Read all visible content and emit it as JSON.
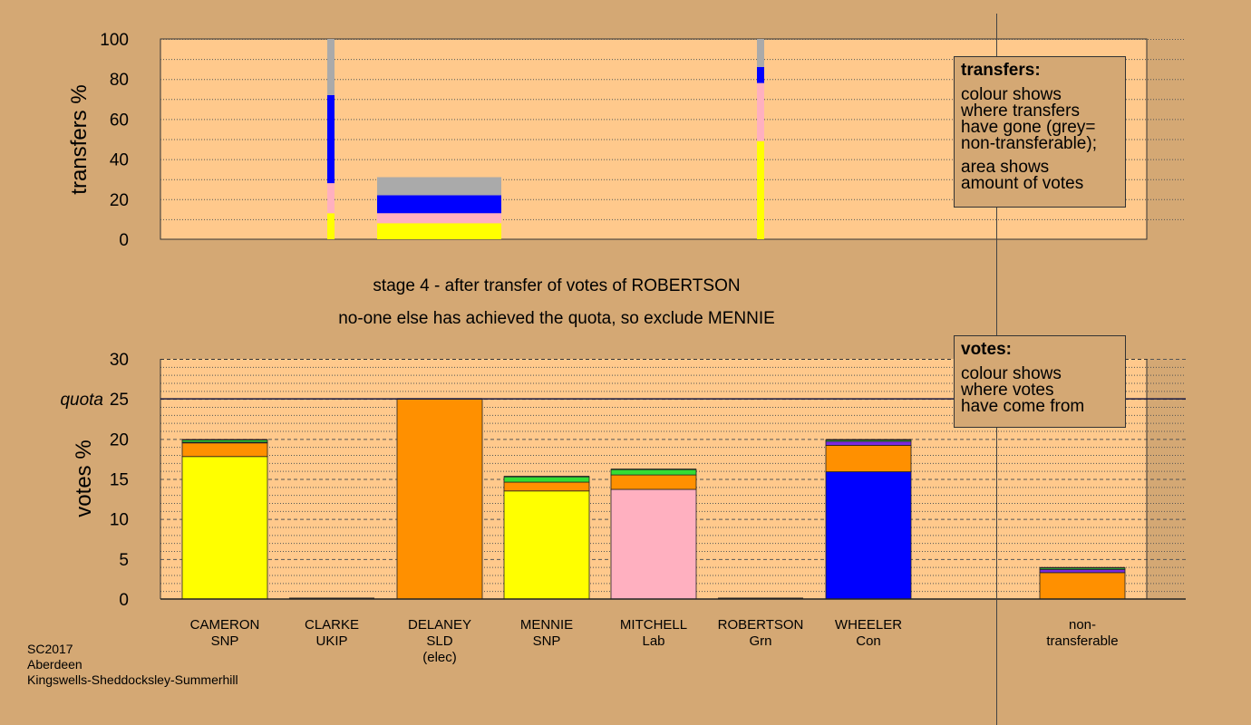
{
  "colors": {
    "background": "#d4a874",
    "plot_bg": "#ffc98c",
    "SNP": "#ffff00",
    "Con": "#0000ff",
    "Lab": "#ffb0c0",
    "SLD": "#ff9000",
    "Grn": "#33dd33",
    "UKIP": "#7a2adf",
    "nontransferable": "#aaaaaa"
  },
  "stage_title": "stage 4 - after transfer of votes of ROBERTSON",
  "stage_subtitle": "no-one else has achieved the quota, so exclude MENNIE",
  "transfers_legend": {
    "title": "transfers:",
    "lines_a": [
      "colour shows",
      "where transfers",
      "have gone (grey=",
      "non-transferable);"
    ],
    "lines_b": [
      "area shows",
      "amount of votes"
    ]
  },
  "votes_legend": {
    "title": "votes:",
    "lines": [
      "colour shows",
      "where votes",
      "have come from"
    ]
  },
  "footer": {
    "line1": "SC2017",
    "line2": "Aberdeen",
    "line3": "Kingswells-Sheddocksley-Summerhill"
  },
  "chart_data": [
    {
      "type": "bar",
      "name": "transfers",
      "ylabel": "transfers %",
      "ylim": [
        0,
        100
      ],
      "yticks": [
        0,
        20,
        40,
        60,
        80,
        100
      ],
      "grid": "dotted",
      "columns": [
        {
          "candidate": "CLARKE",
          "width_votes": 0.1,
          "segments": [
            {
              "to": "SNP",
              "value": 13
            },
            {
              "to": "Lab",
              "value": 15
            },
            {
              "to": "Con",
              "value": 44
            },
            {
              "to": "nontransferable",
              "value": 28
            }
          ]
        },
        {
          "candidate": "DELANEY",
          "width_votes": 5.9,
          "segments": [
            {
              "to": "SNP",
              "value": 8
            },
            {
              "to": "Lab",
              "value": 5
            },
            {
              "to": "Con",
              "value": 9
            },
            {
              "to": "nontransferable",
              "value": 9
            }
          ]
        },
        {
          "candidate": "ROBERTSON",
          "width_votes": 0.1,
          "segments": [
            {
              "to": "SNP",
              "value": 49
            },
            {
              "to": "Lab",
              "value": 29
            },
            {
              "to": "Con",
              "value": 8
            },
            {
              "to": "nontransferable",
              "value": 14
            }
          ]
        }
      ]
    },
    {
      "type": "bar",
      "name": "votes",
      "ylabel": "votes %",
      "ylim": [
        0,
        30
      ],
      "yticks": [
        0,
        5,
        10,
        15,
        20,
        25,
        30
      ],
      "quota": 25,
      "quota_label": "quota",
      "grid": "dotted",
      "categories": [
        {
          "line1": "CAMERON",
          "line2": "SNP",
          "line3": ""
        },
        {
          "line1": "CLARKE",
          "line2": "UKIP",
          "line3": ""
        },
        {
          "line1": "DELANEY",
          "line2": "SLD",
          "line3": "(elec)"
        },
        {
          "line1": "MENNIE",
          "line2": "SNP",
          "line3": ""
        },
        {
          "line1": "MITCHELL",
          "line2": "Lab",
          "line3": ""
        },
        {
          "line1": "ROBERTSON",
          "line2": "Grn",
          "line3": ""
        },
        {
          "line1": "WHEELER",
          "line2": "Con",
          "line3": ""
        },
        {
          "line1": "non-",
          "line2": "transferable",
          "line3": ""
        }
      ],
      "bars": [
        [
          {
            "from": "SNP",
            "value": 17.8
          },
          {
            "from": "SLD",
            "value": 1.7
          },
          {
            "from": "UKIP",
            "value": 0.1
          },
          {
            "from": "Grn",
            "value": 0.3
          }
        ],
        [
          {
            "from": "UKIP",
            "value": 0.0
          }
        ],
        [
          {
            "from": "SLD",
            "value": 25.0
          }
        ],
        [
          {
            "from": "SNP",
            "value": 13.5
          },
          {
            "from": "SLD",
            "value": 1.1
          },
          {
            "from": "Grn",
            "value": 0.7
          }
        ],
        [
          {
            "from": "Lab",
            "value": 13.7
          },
          {
            "from": "SLD",
            "value": 1.8
          },
          {
            "from": "Grn",
            "value": 0.7
          }
        ],
        [
          {
            "from": "Grn",
            "value": 0.0
          }
        ],
        [
          {
            "from": "Con",
            "value": 15.9
          },
          {
            "from": "SLD",
            "value": 3.3
          },
          {
            "from": "UKIP",
            "value": 0.5
          },
          {
            "from": "Grn",
            "value": 0.2
          }
        ],
        [
          {
            "from": "SLD",
            "value": 3.3
          },
          {
            "from": "UKIP",
            "value": 0.4
          },
          {
            "from": "Grn",
            "value": 0.2
          }
        ]
      ]
    }
  ]
}
